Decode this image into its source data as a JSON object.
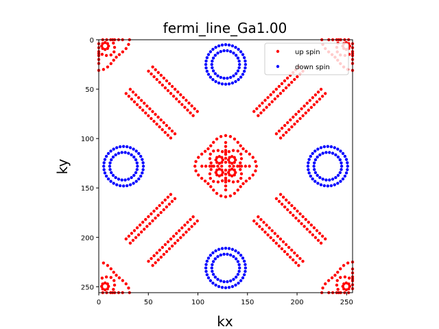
{
  "chart_data": {
    "type": "scatter",
    "title": "fermi_line_Ga1.00",
    "xlabel": "kx",
    "ylabel": "ky",
    "xlim": [
      0,
      256
    ],
    "ylim": [
      256,
      0
    ],
    "y_inverted": true,
    "xticks": [
      0,
      50,
      100,
      150,
      200,
      250
    ],
    "yticks": [
      0,
      50,
      100,
      150,
      200,
      250
    ],
    "grid": false,
    "legend_position": "top-right",
    "series": [
      {
        "name": "up spin",
        "color": "#ff0000",
        "shape": "fermi-surface-network",
        "lattice_centers": [
          [
            0,
            0
          ],
          [
            256,
            0
          ],
          [
            128,
            128
          ],
          [
            0,
            256
          ],
          [
            256,
            256
          ]
        ],
        "arc_pairs": [
          [
            [
              0,
              0
            ],
            [
              128,
              128
            ]
          ],
          [
            [
              256,
              0
            ],
            [
              128,
              128
            ]
          ],
          [
            [
              0,
              256
            ],
            [
              128,
              128
            ]
          ],
          [
            [
              256,
              256
            ],
            [
              128,
              128
            ]
          ]
        ]
      },
      {
        "name": "down spin",
        "color": "#0000ff",
        "shape": "double-rings",
        "centers": [
          [
            128,
            25
          ],
          [
            25,
            128
          ],
          [
            231,
            128
          ],
          [
            128,
            231
          ]
        ],
        "radii": [
          14,
          20
        ]
      }
    ]
  }
}
